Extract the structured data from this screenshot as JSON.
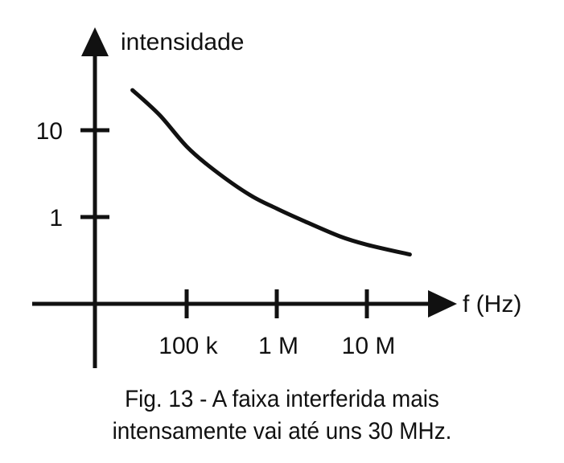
{
  "chart_data": {
    "type": "line",
    "x_scale": "log",
    "y_scale": "log",
    "ylabel": "intensidade",
    "xlabel": "f (Hz)",
    "x_ticks": [
      {
        "value": 100000,
        "label": "100 k"
      },
      {
        "value": 1000000,
        "label": "1 M"
      },
      {
        "value": 10000000,
        "label": "10 M"
      }
    ],
    "y_ticks": [
      {
        "value": 10,
        "label": "10"
      },
      {
        "value": 1,
        "label": "1"
      }
    ],
    "series": [
      {
        "x": [
          25000,
          50000,
          100000,
          200000,
          500000,
          1000000,
          2000000,
          5000000,
          10000000,
          30000000
        ],
        "y": [
          29,
          15,
          6.5,
          3.5,
          1.8,
          1.25,
          0.9,
          0.6,
          0.48,
          0.37
        ]
      }
    ],
    "grid": false,
    "legend": "none"
  },
  "caption": {
    "line1": "Fig. 13 - A faixa interferida mais",
    "line2": "intensamente vai até uns 30 MHz."
  },
  "colors": {
    "ink": "#111111",
    "background": "#ffffff"
  }
}
